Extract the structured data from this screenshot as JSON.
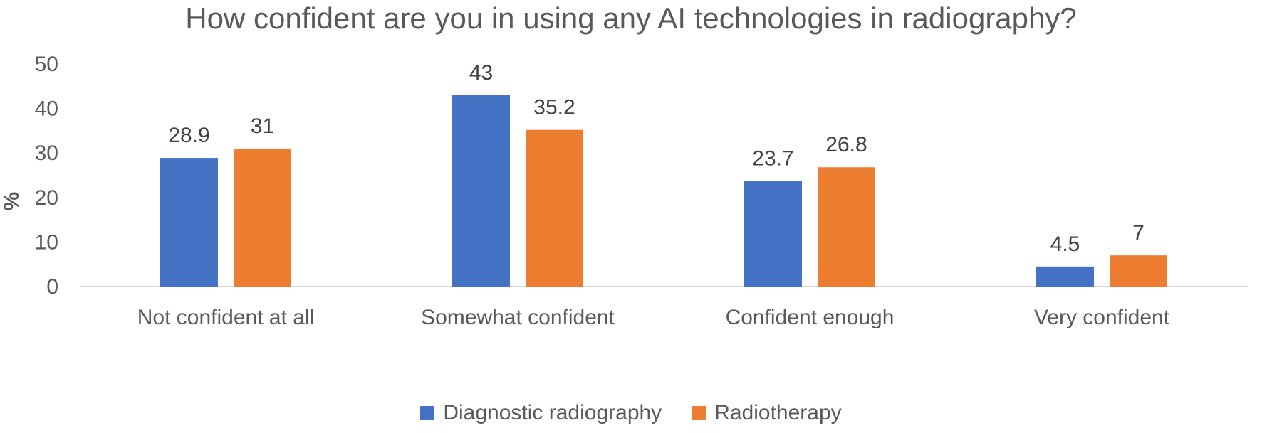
{
  "chart_data": {
    "type": "bar",
    "title": "How confident are you in using any AI technologies in radiography?",
    "xlabel": "",
    "ylabel": "%",
    "ylim": [
      0,
      50
    ],
    "yticks": [
      0,
      10,
      20,
      30,
      40,
      50
    ],
    "grid": false,
    "legend_position": "bottom",
    "categories": [
      "Not confident at all",
      "Somewhat confident",
      "Confident enough",
      "Very confident"
    ],
    "series": [
      {
        "name": "Diagnostic radiography",
        "color": "#4472C4",
        "values": [
          28.9,
          43,
          23.7,
          4.5
        ]
      },
      {
        "name": "Radiotherapy",
        "color": "#ED7D31",
        "values": [
          31,
          35.2,
          26.8,
          7
        ]
      }
    ]
  }
}
